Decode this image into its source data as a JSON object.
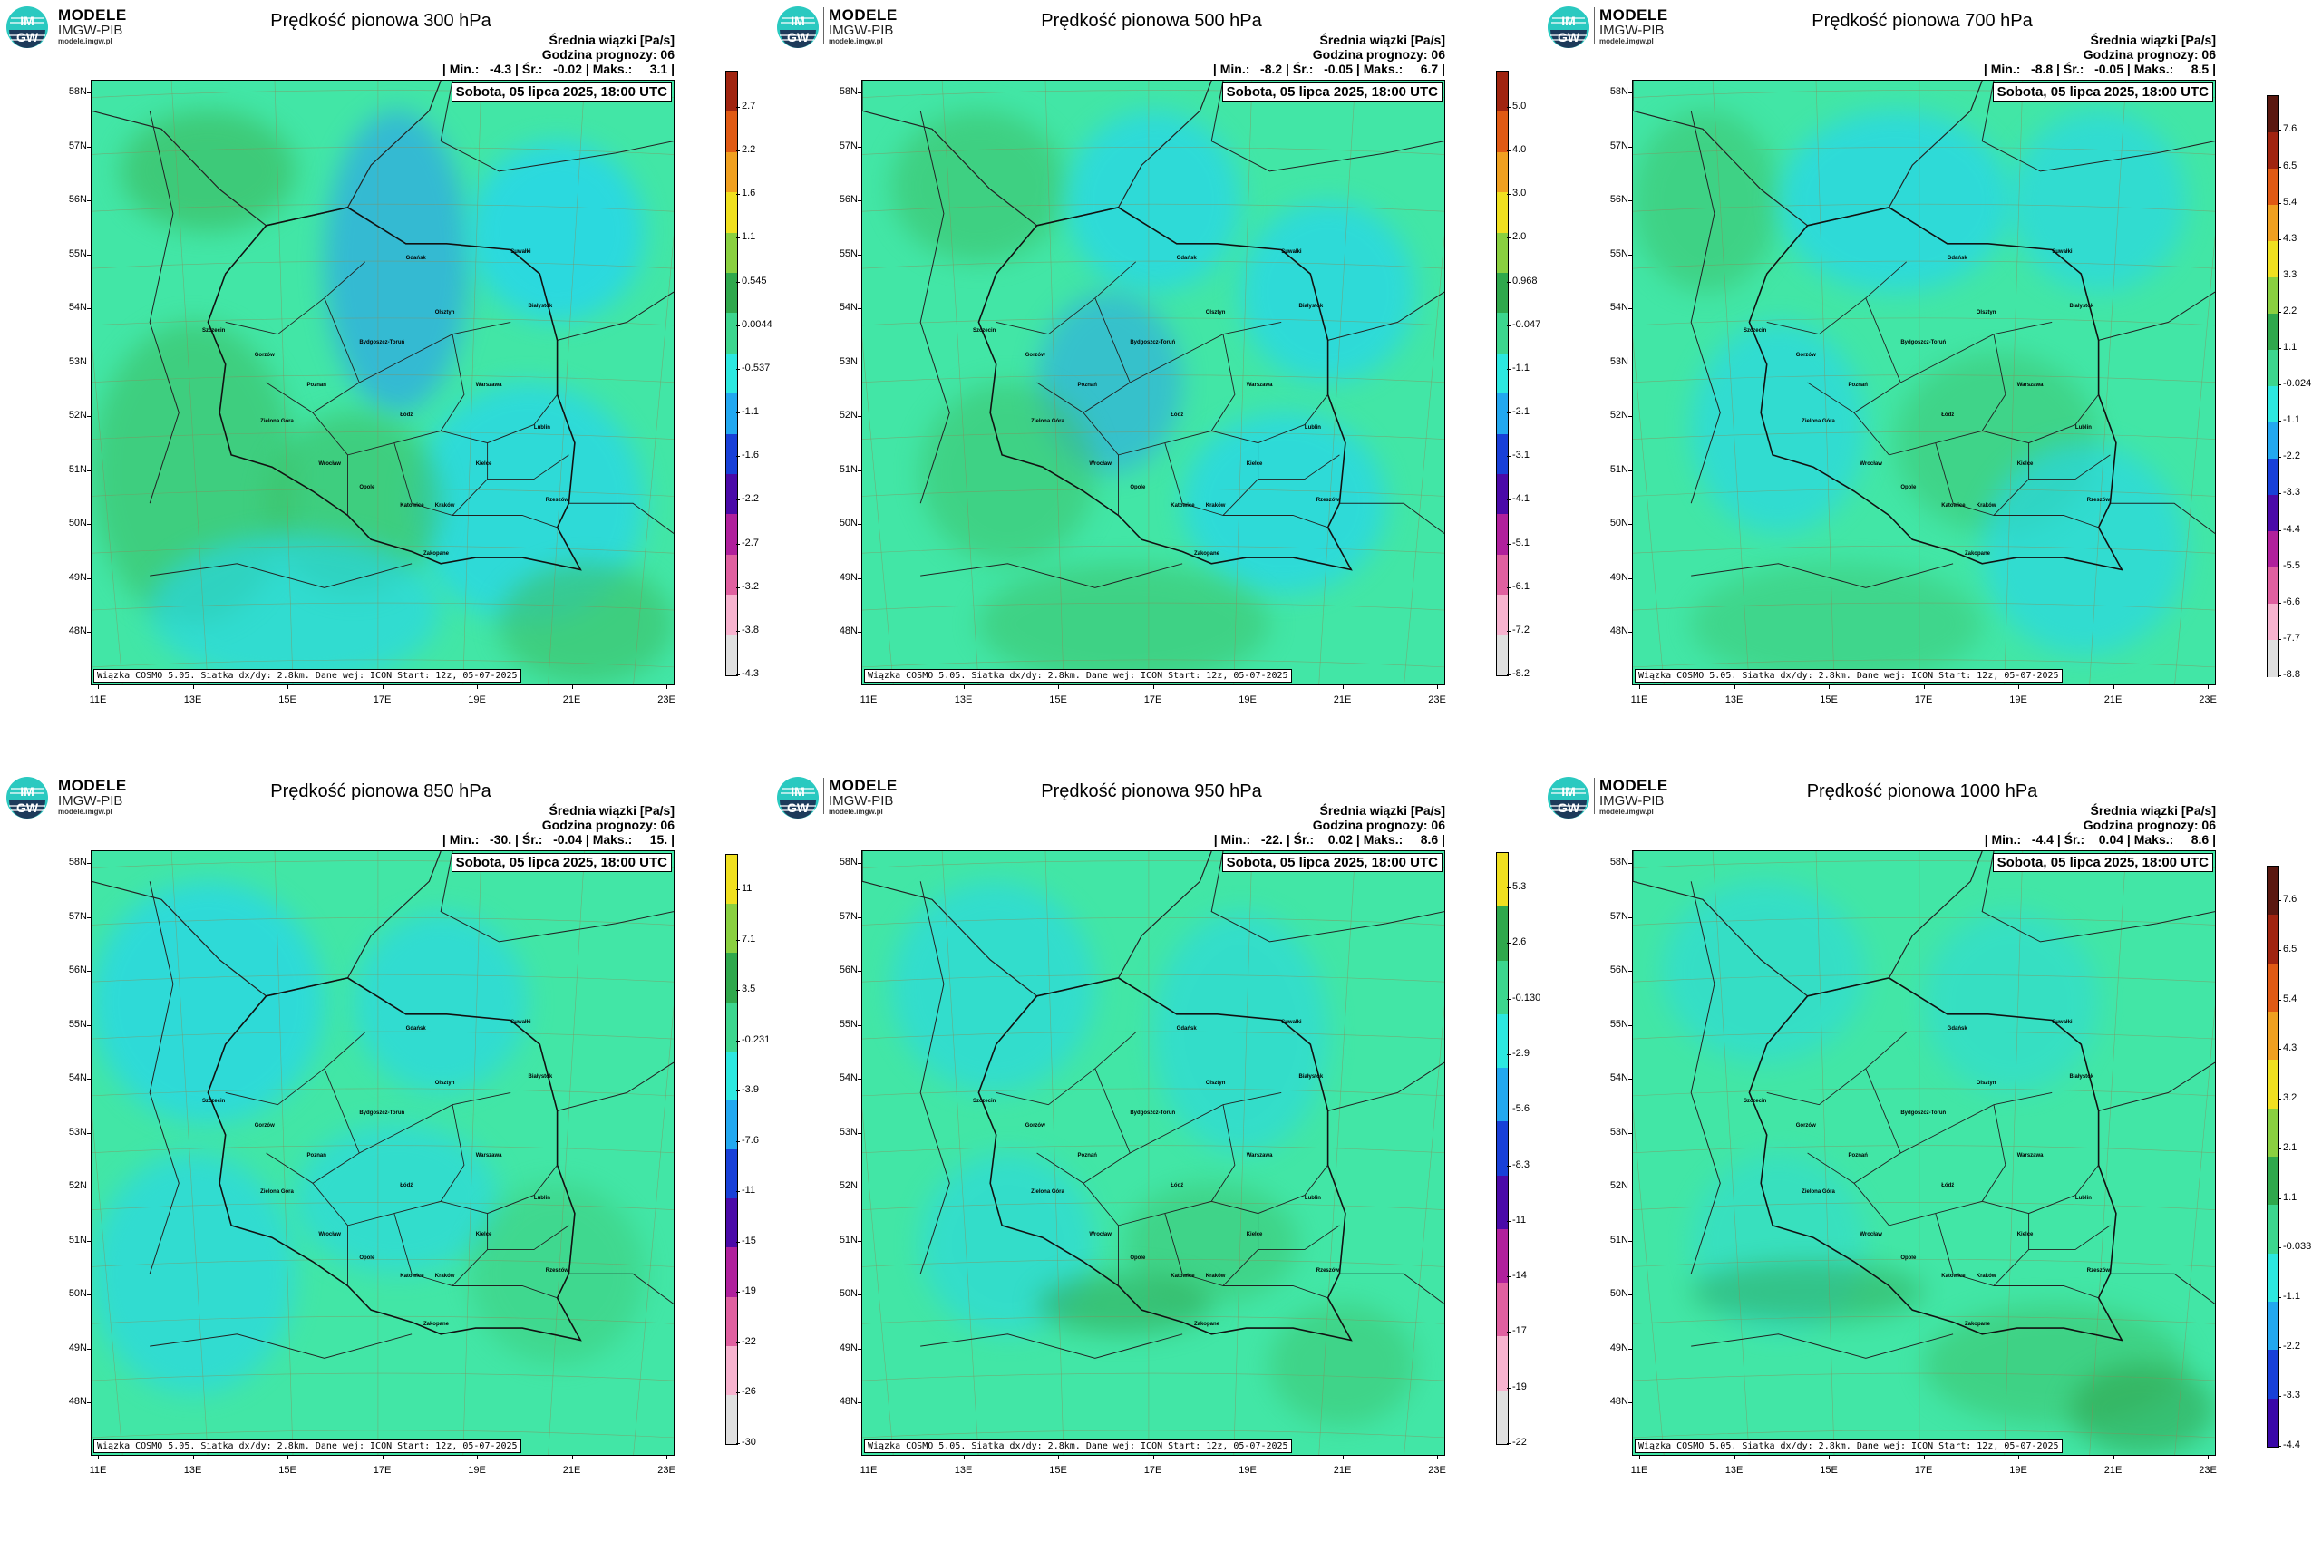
{
  "brand": {
    "line1": "MODELE",
    "line2": "IMGW-PIB",
    "line3": "modele.imgw.pl",
    "badge_top": "IM",
    "badge_bottom": "GW"
  },
  "common": {
    "info_title": "Średnia wiązki [Pa/s]",
    "info_hour": "Godzina prognozy: 06",
    "date": "Sobota, 05 lipca 2025, 18:00 UTC",
    "source": "Wiązka COSMO 5.05. Siatka dx/dy: 2.8km. Dane wej: ICON Start: 12z, 05-07-2025",
    "lat_labels": [
      "58N",
      "57N",
      "56N",
      "55N",
      "54N",
      "53N",
      "52N",
      "51N",
      "50N",
      "49N",
      "48N"
    ],
    "lon_labels": [
      "11E",
      "13E",
      "15E",
      "17E",
      "19E",
      "21E",
      "23E"
    ],
    "cities": [
      "Gdańsk",
      "Olsztyn",
      "Suwałki",
      "Białystok",
      "Szczecin",
      "Bydgoszcz-Toruń",
      "Gorzów",
      "Poznań",
      "Warszawa",
      "Zielona Góra",
      "Łódź",
      "Lublin",
      "Wrocław",
      "Kielce",
      "Opole",
      "Rzeszów",
      "Katowice",
      "Kraków",
      "Zakopane"
    ]
  },
  "colors": {
    "background": "#42e6a6",
    "cyan": "#26d6ec",
    "green": "#3cbf66",
    "dark_green": "#2ea14a",
    "blue": "#2b9df0"
  },
  "panels": [
    {
      "title": "Prędkość pionowa 300 hPa",
      "stats": "| Min.:   -4.3 | Śr.:   -0.02 | Maks.:     3.1 |",
      "colorbar": [
        "2.7",
        "2.2",
        "1.6",
        "1.1",
        "0.545",
        "0.0044",
        "-0.537",
        "-1.1",
        "-1.6",
        "-2.2",
        "-2.7",
        "-3.2",
        "-3.8",
        "-4.3"
      ]
    },
    {
      "title": "Prędkość pionowa 500 hPa",
      "stats": "| Min.:   -8.2 | Śr.:   -0.05 | Maks.:     6.7 |",
      "colorbar": [
        "5.0",
        "4.0",
        "3.0",
        "2.0",
        "0.968",
        "-0.047",
        "-1.1",
        "-2.1",
        "-3.1",
        "-4.1",
        "-5.1",
        "-6.1",
        "-7.2",
        "-8.2"
      ]
    },
    {
      "title": "Prędkość pionowa 700 hPa",
      "stats": "| Min.:   -8.8 | Śr.:   -0.05 | Maks.:     8.5 |",
      "colorbar": [
        "7.6",
        "6.5",
        "5.4",
        "4.3",
        "3.3",
        "2.2",
        "1.1",
        "-0.024",
        "-1.1",
        "-2.2",
        "-3.3",
        "-4.4",
        "-5.5",
        "-6.6",
        "-7.7",
        "-8.8"
      ]
    },
    {
      "title": "Prędkość pionowa 850 hPa",
      "stats": "| Min.:   -30. | Śr.:   -0.04 | Maks.:     15. |",
      "colorbar": [
        "11",
        "7.1",
        "3.5",
        "-0.231",
        "-3.9",
        "-7.6",
        "-11",
        "-15",
        "-19",
        "-22",
        "-26",
        "-30"
      ]
    },
    {
      "title": "Prędkość pionowa 950 hPa",
      "stats": "| Min.:   -22. | Śr.:    0.02 | Maks.:     8.6 |",
      "colorbar": [
        "5.3",
        "2.6",
        "-0.130",
        "-2.9",
        "-5.6",
        "-8.3",
        "-11",
        "-14",
        "-17",
        "-19",
        "-22"
      ]
    },
    {
      "title": "Prędkość pionowa 1000 hPa",
      "stats": "| Min.:   -4.4 | Śr.:    0.04 | Maks.:     8.6 |",
      "colorbar": [
        "7.6",
        "6.5",
        "5.4",
        "4.3",
        "3.2",
        "2.1",
        "1.1",
        "-0.033",
        "-1.1",
        "-2.2",
        "-3.3",
        "-4.4"
      ]
    }
  ]
}
